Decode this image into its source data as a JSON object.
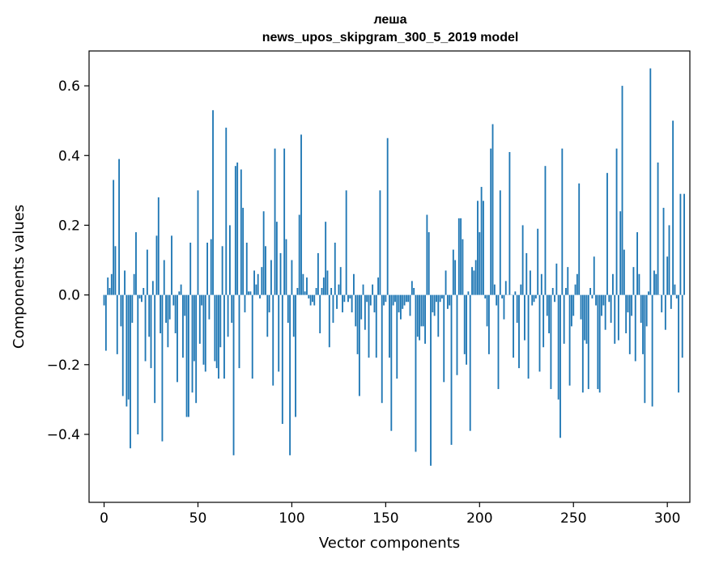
{
  "chart_data": {
    "type": "bar",
    "title": "леша",
    "subtitle": "news_upos_skipgram_300_5_2019 model",
    "xlabel": "Vector components",
    "ylabel": "Components values",
    "xlim": [
      -8,
      312
    ],
    "ylim": [
      -0.595,
      0.7
    ],
    "xticks": [
      0,
      50,
      100,
      150,
      200,
      250,
      300
    ],
    "xtick_labels": [
      "0",
      "50",
      "100",
      "150",
      "200",
      "250",
      "300"
    ],
    "yticks": [
      -0.4,
      -0.2,
      0.0,
      0.2,
      0.4,
      0.6
    ],
    "ytick_labels": [
      "−0.4",
      "−0.2",
      "0.0",
      "0.2",
      "0.4",
      "0.6"
    ],
    "bar_color": "#1f77b4",
    "grid": false,
    "values": [
      -0.03,
      -0.16,
      0.05,
      0.02,
      0.06,
      0.33,
      0.14,
      -0.17,
      0.39,
      -0.09,
      -0.29,
      0.07,
      -0.32,
      -0.3,
      -0.44,
      -0.08,
      0.06,
      0.18,
      -0.4,
      -0.01,
      -0.02,
      0.02,
      -0.19,
      0.13,
      -0.12,
      -0.21,
      0.04,
      -0.31,
      0.17,
      0.28,
      -0.11,
      -0.42,
      0.1,
      -0.08,
      -0.15,
      -0.07,
      0.17,
      -0.03,
      -0.11,
      -0.25,
      0.01,
      0.03,
      -0.18,
      -0.06,
      -0.35,
      -0.35,
      0.15,
      -0.28,
      -0.19,
      -0.31,
      0.3,
      -0.14,
      -0.03,
      -0.2,
      -0.22,
      0.15,
      -0.07,
      0.16,
      0.53,
      -0.19,
      -0.21,
      -0.24,
      -0.15,
      0.14,
      -0.24,
      0.48,
      -0.12,
      0.2,
      -0.08,
      -0.46,
      0.37,
      0.38,
      -0.21,
      0.36,
      0.25,
      -0.05,
      0.15,
      0.01,
      0.01,
      -0.24,
      0.07,
      0.03,
      0.06,
      -0.01,
      0.08,
      0.24,
      0.14,
      -0.12,
      -0.05,
      0.1,
      -0.26,
      0.42,
      0.21,
      -0.22,
      0.12,
      -0.37,
      0.42,
      0.16,
      -0.08,
      -0.46,
      0.1,
      -0.12,
      -0.35,
      0.02,
      0.23,
      0.46,
      0.06,
      0.01,
      0.05,
      -0.01,
      -0.03,
      -0.02,
      -0.03,
      0.02,
      0.12,
      -0.11,
      0.02,
      0.05,
      0.21,
      0.07,
      -0.15,
      0.02,
      -0.08,
      0.15,
      -0.04,
      0.03,
      0.08,
      -0.05,
      -0.02,
      0.3,
      -0.02,
      -0.01,
      -0.05,
      0.06,
      -0.09,
      -0.17,
      -0.29,
      -0.07,
      0.03,
      -0.1,
      -0.02,
      -0.18,
      -0.03,
      0.03,
      -0.05,
      -0.18,
      0.05,
      0.3,
      -0.31,
      -0.03,
      -0.02,
      0.45,
      -0.18,
      -0.39,
      -0.03,
      -0.02,
      -0.24,
      -0.05,
      -0.07,
      -0.04,
      -0.03,
      -0.02,
      -0.02,
      -0.06,
      0.04,
      0.02,
      -0.45,
      -0.12,
      -0.13,
      -0.09,
      -0.09,
      -0.14,
      0.23,
      0.18,
      -0.49,
      -0.05,
      -0.06,
      -0.02,
      -0.12,
      -0.02,
      -0.01,
      -0.25,
      0.07,
      -0.04,
      -0.03,
      -0.43,
      0.13,
      0.1,
      -0.23,
      0.22,
      0.22,
      0.16,
      -0.17,
      -0.2,
      0.01,
      -0.39,
      0.08,
      0.07,
      0.1,
      0.27,
      0.18,
      0.31,
      0.27,
      -0.01,
      -0.09,
      -0.17,
      0.42,
      0.49,
      0.03,
      -0.03,
      -0.27,
      0.3,
      -0.01,
      -0.07,
      0.04,
      0.0,
      0.41,
      0.0,
      -0.18,
      0.01,
      -0.08,
      -0.21,
      0.03,
      0.2,
      -0.13,
      0.12,
      -0.24,
      0.07,
      -0.03,
      -0.02,
      -0.01,
      0.19,
      -0.22,
      0.06,
      -0.15,
      0.37,
      -0.06,
      -0.11,
      -0.27,
      0.02,
      -0.02,
      0.09,
      -0.3,
      -0.41,
      0.42,
      -0.14,
      0.02,
      0.08,
      -0.26,
      -0.09,
      -0.06,
      0.03,
      0.06,
      0.32,
      -0.07,
      -0.28,
      -0.13,
      -0.14,
      -0.27,
      0.02,
      -0.01,
      0.11,
      -0.03,
      -0.27,
      -0.28,
      -0.06,
      -0.03,
      -0.1,
      0.35,
      -0.02,
      -0.08,
      0.06,
      -0.14,
      0.42,
      -0.13,
      0.24,
      0.6,
      0.13,
      -0.11,
      -0.05,
      -0.17,
      -0.06,
      0.08,
      -0.19,
      0.18,
      0.06,
      -0.08,
      -0.17,
      -0.31,
      -0.09,
      0.01,
      0.65,
      -0.32,
      0.07,
      0.06,
      0.38,
      0.0,
      -0.05,
      0.25,
      -0.1,
      0.11,
      0.2,
      -0.04,
      0.5,
      0.03,
      -0.01,
      -0.28,
      0.29,
      -0.18,
      0.29
    ]
  }
}
